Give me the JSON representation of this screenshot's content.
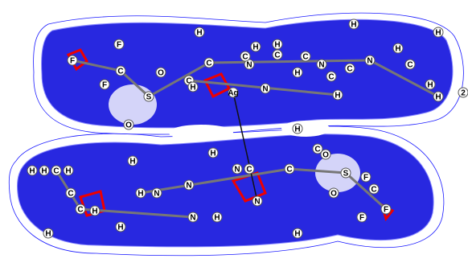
{
  "labels": [
    "F",
    "F",
    "C",
    "F",
    "S",
    "O",
    "O",
    "C",
    "H",
    "C",
    "H",
    "Ag",
    "N",
    "C",
    "H",
    "N",
    "C",
    "H",
    "C",
    "H",
    "N",
    "C",
    "H",
    "H",
    "C",
    "N",
    "H",
    "C",
    "H",
    "H",
    "H",
    "2",
    "H",
    "H",
    "C",
    "H",
    "C",
    "C",
    "H",
    "H",
    "H",
    "H",
    "N",
    "N",
    "N",
    "H",
    "H",
    "N",
    "C",
    "N",
    "C",
    "H",
    "C",
    "O",
    "S",
    "O",
    "F",
    "C",
    "F",
    "F",
    "H",
    "H"
  ]
}
